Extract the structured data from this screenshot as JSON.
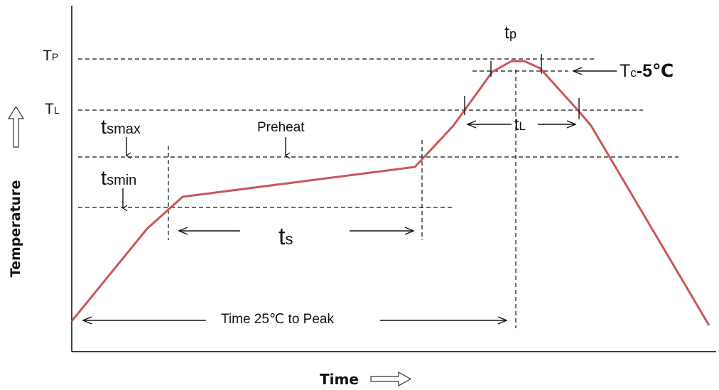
{
  "labels": {
    "tp_level": "T",
    "tp_level_sub": "P",
    "tl_level": "T",
    "tl_level_sub": "L",
    "tp_time": "t",
    "tp_time_sub": "p",
    "tc_minus": "T",
    "tc_minus_sub": "c",
    "tc_minus_suffix": "-5℃",
    "tsmax": "t",
    "tsmax_sub": "smax",
    "tsmin": "t",
    "tsmin_sub": "smin",
    "preheat": "Preheat",
    "tl_time": "t",
    "tl_time_sub": "L",
    "ts": "t",
    "ts_sub": "s",
    "time_to_peak": "Time 25℃ to Peak",
    "y_axis": "Temperature",
    "x_axis": "Time"
  },
  "colors": {
    "profile_curve": "#c9575a",
    "lines": "#111111",
    "axis": "#000000"
  }
}
